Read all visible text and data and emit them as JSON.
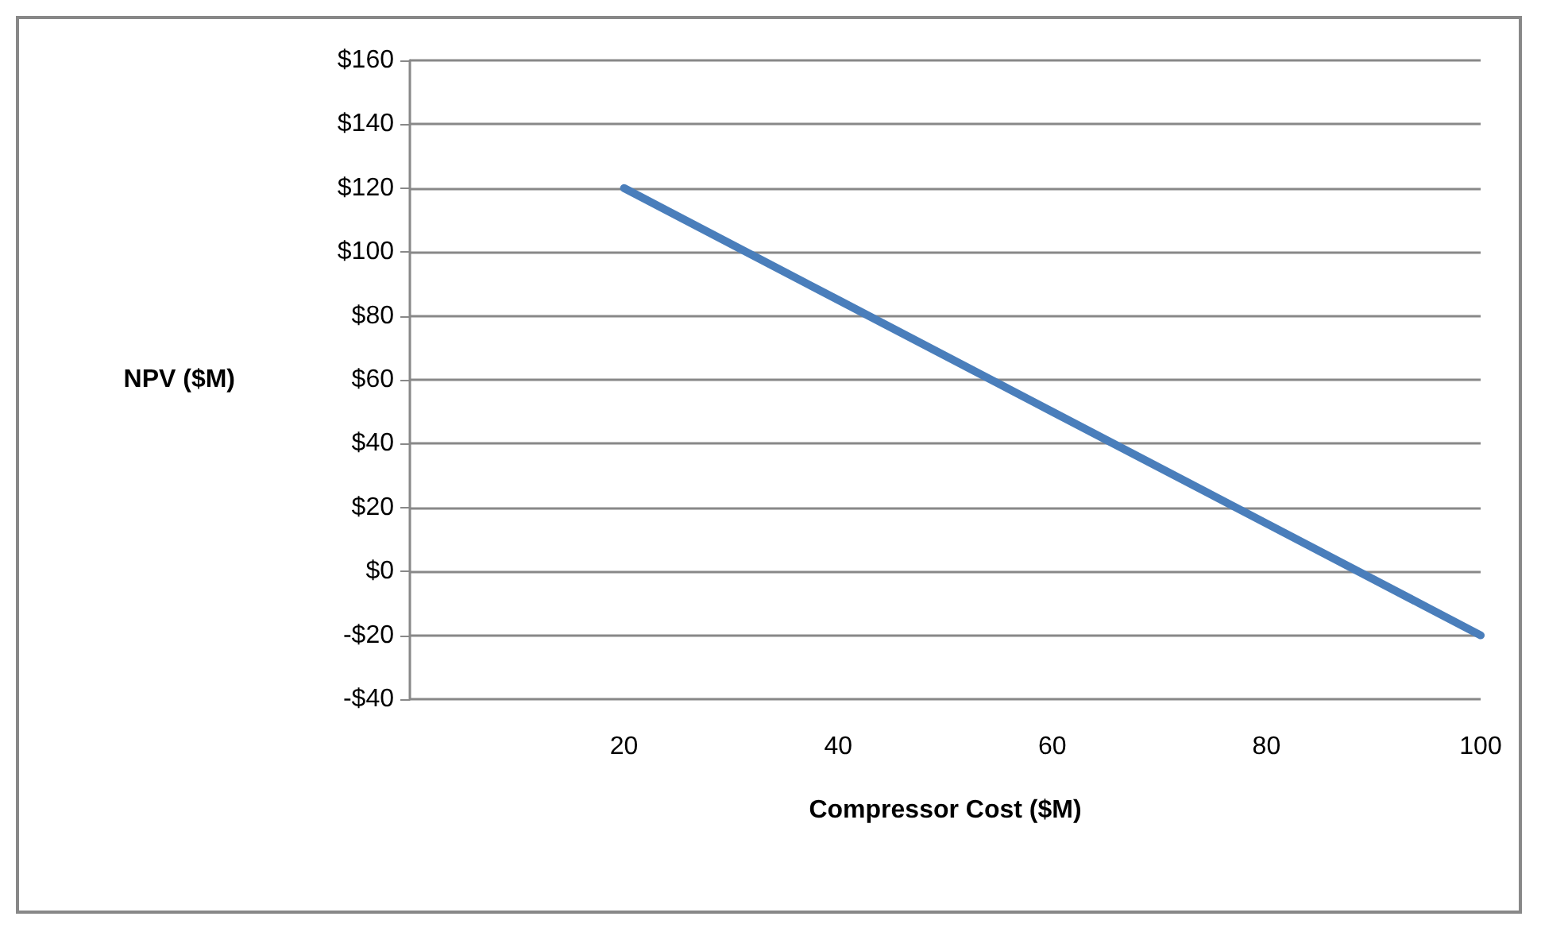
{
  "chart_data": {
    "type": "line",
    "xlabel": "Compressor Cost ($M)",
    "ylabel": "NPV ($M)",
    "x": [
      20,
      40,
      60,
      80,
      100
    ],
    "series": [
      {
        "color": "#4a7ebb",
        "values": [
          120,
          85,
          50,
          15,
          -20
        ]
      }
    ],
    "xlim": [
      0,
      100
    ],
    "xticks": [
      20,
      40,
      60,
      80,
      100
    ],
    "ylim": [
      -40,
      160
    ],
    "yticks": [
      {
        "value": -40,
        "label": "-$40"
      },
      {
        "value": -20,
        "label": "-$20"
      },
      {
        "value": 0,
        "label": "$0"
      },
      {
        "value": 20,
        "label": "$20"
      },
      {
        "value": 40,
        "label": "$40"
      },
      {
        "value": 60,
        "label": "$60"
      },
      {
        "value": 80,
        "label": "$80"
      },
      {
        "value": 100,
        "label": "$100"
      },
      {
        "value": 120,
        "label": "$120"
      },
      {
        "value": 140,
        "label": "$140"
      },
      {
        "value": 160,
        "label": "$160"
      }
    ],
    "grid": "y",
    "marker": "none",
    "line_style": "solid"
  }
}
